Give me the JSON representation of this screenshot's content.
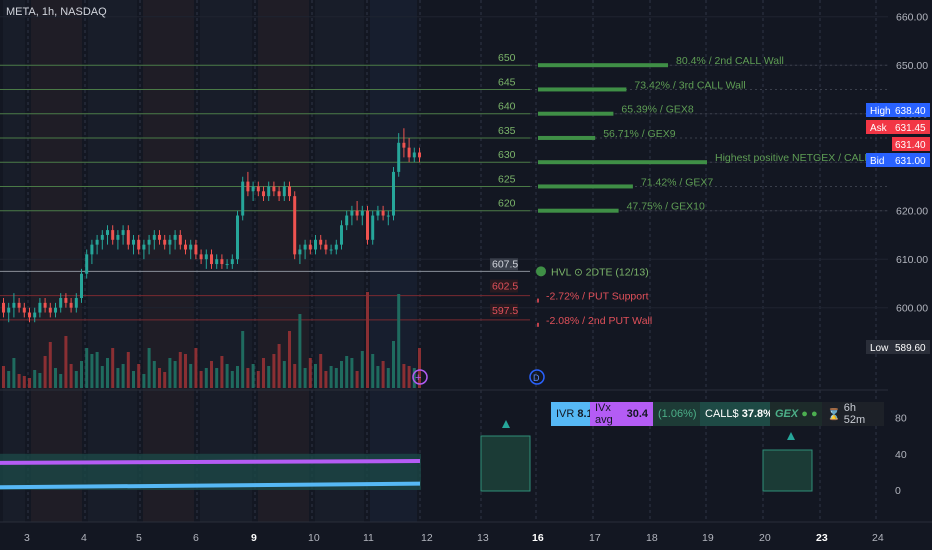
{
  "header": {
    "symbol_line": "META, 1h, NASDAQ"
  },
  "chart_data": {
    "type": "candlestick",
    "symbol": "META",
    "timeframe": "1h",
    "exchange": "NASDAQ",
    "price_axis": {
      "ticks": [
        660,
        650,
        640,
        630,
        620,
        610,
        600
      ],
      "tick_labels": [
        "660.00",
        "650.00",
        "640.00",
        "630.00",
        "620.00",
        "610.00",
        "600.00"
      ],
      "ylim": [
        588,
        662
      ]
    },
    "price_badges": [
      {
        "label": "High",
        "value": "638.40",
        "color": "#2962ff"
      },
      {
        "label": "Ask",
        "value": "631.45",
        "color": "#f23645"
      },
      {
        "label": "",
        "value": "631.40",
        "color": "#f23645"
      },
      {
        "label": "Bid",
        "value": "631.00",
        "color": "#2962ff"
      },
      {
        "label": "Low",
        "value": "589.60",
        "color": "#2a2e39"
      }
    ],
    "x_axis": {
      "labels": [
        "3",
        "4",
        "5",
        "6",
        "9",
        "10",
        "11",
        "12",
        "13",
        "16",
        "17",
        "18",
        "19",
        "20",
        "23",
        "24"
      ],
      "bold": [
        "9",
        "16",
        "23"
      ]
    },
    "levels": [
      {
        "price": 650,
        "label": "650",
        "text": "80.4% / 2nd CALL Wall",
        "kind": "call",
        "bar": 1.0
      },
      {
        "price": 645,
        "label": "645",
        "text": "73.42% / 3rd CALL Wall",
        "kind": "call",
        "bar": 0.68
      },
      {
        "price": 640,
        "label": "640",
        "text": "65.39% / GEX8",
        "kind": "call",
        "bar": 0.58
      },
      {
        "price": 635,
        "label": "635",
        "text": "56.71% / GEX9",
        "kind": "call",
        "bar": 0.44
      },
      {
        "price": 630,
        "label": "630",
        "text": "Highest positive NETGEX / CALL Resistance",
        "kind": "call",
        "bar": 1.3
      },
      {
        "price": 625,
        "label": "625",
        "text": "71.42% / GEX7",
        "kind": "call",
        "bar": 0.73
      },
      {
        "price": 620,
        "label": "620",
        "text": "47.75% / GEX10",
        "kind": "call",
        "bar": 0.62
      },
      {
        "price": 607.5,
        "label": "607.5",
        "text": "HVL",
        "kind": "hvl",
        "suffix": "2DTE (12/13)"
      },
      {
        "price": 602.5,
        "label": "602.5",
        "text": "-2.72% / PUT Support",
        "kind": "put"
      },
      {
        "price": 597.5,
        "label": "597.5",
        "text": "-2.08% / 2nd PUT Wall",
        "kind": "put"
      }
    ],
    "candles": [
      [
        601,
        602,
        598,
        599
      ],
      [
        599,
        601,
        597,
        600
      ],
      [
        600,
        603,
        598,
        601
      ],
      [
        601,
        602,
        599,
        600
      ],
      [
        600,
        601,
        598,
        599
      ],
      [
        599,
        600,
        597,
        598
      ],
      [
        598,
        600,
        597,
        599
      ],
      [
        599,
        602,
        598,
        601
      ],
      [
        601,
        602,
        599,
        600
      ],
      [
        600,
        601,
        598,
        599
      ],
      [
        599,
        601,
        598,
        600
      ],
      [
        600,
        603,
        599,
        602
      ],
      [
        602,
        603,
        600,
        601
      ],
      [
        601,
        602,
        599,
        600
      ],
      [
        600,
        603,
        599,
        602
      ],
      [
        602,
        608,
        601,
        607
      ],
      [
        607,
        612,
        606,
        611
      ],
      [
        611,
        614,
        609,
        613
      ],
      [
        613,
        615,
        611,
        614
      ],
      [
        614,
        616,
        612,
        615
      ],
      [
        615,
        617,
        613,
        616
      ],
      [
        616,
        617,
        613,
        614
      ],
      [
        614,
        616,
        612,
        615
      ],
      [
        615,
        617,
        613,
        616
      ],
      [
        616,
        617,
        612,
        613
      ],
      [
        613,
        615,
        611,
        614
      ],
      [
        614,
        615,
        611,
        612
      ],
      [
        612,
        614,
        610,
        613
      ],
      [
        613,
        615,
        611,
        614
      ],
      [
        614,
        616,
        612,
        615
      ],
      [
        615,
        616,
        613,
        614
      ],
      [
        614,
        615,
        612,
        613
      ],
      [
        613,
        615,
        611,
        614
      ],
      [
        614,
        616,
        612,
        615
      ],
      [
        615,
        616,
        612,
        613
      ],
      [
        613,
        614,
        611,
        612
      ],
      [
        612,
        614,
        610,
        613
      ],
      [
        613,
        614,
        610,
        611
      ],
      [
        611,
        612,
        609,
        610
      ],
      [
        610,
        612,
        608,
        611
      ],
      [
        611,
        612,
        608,
        609
      ],
      [
        609,
        611,
        608,
        610
      ],
      [
        610,
        611,
        608,
        609
      ],
      [
        609,
        610,
        608,
        609
      ],
      [
        609,
        611,
        608,
        610
      ],
      [
        610,
        620,
        609,
        619
      ],
      [
        619,
        627,
        618,
        626
      ],
      [
        626,
        628,
        623,
        624
      ],
      [
        624,
        626,
        622,
        625
      ],
      [
        625,
        626,
        623,
        624
      ],
      [
        624,
        625,
        622,
        623
      ],
      [
        623,
        626,
        622,
        625
      ],
      [
        625,
        626,
        623,
        624
      ],
      [
        624,
        625,
        622,
        623
      ],
      [
        623,
        626,
        622,
        625
      ],
      [
        625,
        626,
        622,
        623
      ],
      [
        623,
        624,
        610,
        611
      ],
      [
        611,
        613,
        609,
        612
      ],
      [
        612,
        614,
        610,
        613
      ],
      [
        613,
        614,
        611,
        612
      ],
      [
        612,
        615,
        611,
        614
      ],
      [
        614,
        615,
        612,
        613
      ],
      [
        613,
        614,
        611,
        612
      ],
      [
        612,
        613,
        611,
        612
      ],
      [
        612,
        614,
        611,
        613
      ],
      [
        613,
        618,
        612,
        617
      ],
      [
        617,
        620,
        616,
        619
      ],
      [
        619,
        621,
        617,
        620
      ],
      [
        620,
        622,
        618,
        619
      ],
      [
        619,
        621,
        617,
        620
      ],
      [
        620,
        621,
        613,
        614
      ],
      [
        614,
        620,
        613,
        619
      ],
      [
        619,
        621,
        618,
        620
      ],
      [
        620,
        621,
        618,
        619
      ],
      [
        619,
        620,
        617,
        619
      ],
      [
        619,
        629,
        618,
        628
      ],
      [
        628,
        636,
        627,
        634
      ],
      [
        634,
        637,
        631,
        633
      ],
      [
        633,
        635,
        630,
        631
      ],
      [
        631,
        633,
        630,
        632
      ],
      [
        632,
        633,
        630,
        631
      ]
    ],
    "volume": [
      22,
      17,
      30,
      14,
      12,
      10,
      18,
      15,
      32,
      46,
      20,
      14,
      52,
      24,
      17,
      27,
      40,
      34,
      36,
      22,
      30,
      40,
      20,
      24,
      36,
      17,
      24,
      14,
      40,
      27,
      20,
      16,
      30,
      27,
      36,
      34,
      24,
      40,
      17,
      20,
      27,
      20,
      32,
      24,
      17,
      22,
      57,
      20,
      24,
      17,
      30,
      22,
      34,
      44,
      27,
      57,
      24,
      74,
      20,
      30,
      24,
      34,
      17,
      22,
      20,
      27,
      32,
      30,
      17,
      37,
      96,
      34,
      22,
      27,
      20,
      47,
      94,
      24,
      22,
      20,
      40
    ],
    "lower_panel": {
      "axis_ticks": [
        80,
        40,
        0
      ],
      "ylim": [
        -20,
        100
      ],
      "series": [
        {
          "name": "IVx",
          "color": "#b45cf5",
          "start": 30,
          "end": 32
        },
        {
          "name": "IVR",
          "color": "#56b8f5",
          "start": 3,
          "end": 7
        }
      ],
      "ivr": "IVR",
      "ivr_value": "8.1",
      "ivx": "IVx avg",
      "ivx_value": "30.4",
      "pct": "(1.06%)",
      "calls": "CALL$",
      "calls_value": "37.8%",
      "gex": "GEX",
      "timer": "6h 52m"
    }
  }
}
